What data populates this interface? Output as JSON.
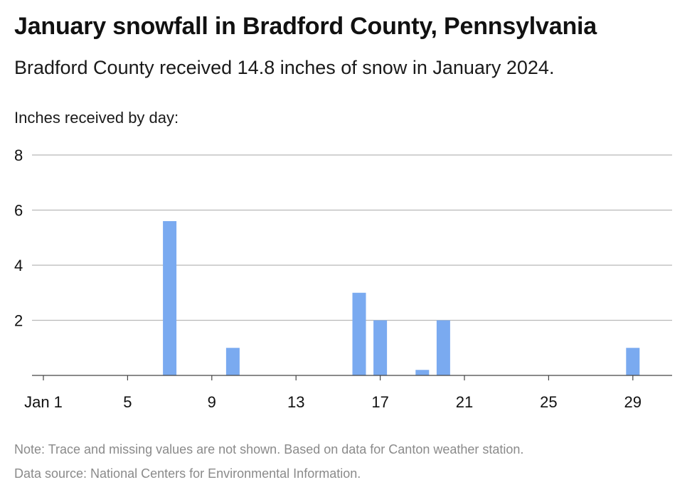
{
  "title": "January snowfall in Bradford County, Pennsylvania",
  "subtitle": "Bradford County received 14.8 inches of snow in January 2024.",
  "note": "Note: Trace and missing values are not shown. Based on data for Canton weather station.",
  "source": "Data source: National Centers for Environmental Information.",
  "colors": {
    "bar": "#7aaaf0",
    "grid": "#b8b8b8",
    "axis": "#444444",
    "text": "#111111"
  },
  "chart_data": {
    "type": "bar",
    "title": "January snowfall in Bradford County, Pennsylvania",
    "subtitle": "Bradford County received 14.8 inches of snow in January 2024.",
    "ylabel": "Inches received by day:",
    "xlabel": "",
    "ylim": [
      0,
      8
    ],
    "yticks": [
      2,
      4,
      6,
      8
    ],
    "x_ticks": [
      {
        "day": 1,
        "label": "Jan 1"
      },
      {
        "day": 5,
        "label": "5"
      },
      {
        "day": 9,
        "label": "9"
      },
      {
        "day": 13,
        "label": "13"
      },
      {
        "day": 17,
        "label": "17"
      },
      {
        "day": 21,
        "label": "21"
      },
      {
        "day": 25,
        "label": "25"
      },
      {
        "day": 29,
        "label": "29"
      }
    ],
    "grid": true,
    "days": [
      7,
      10,
      16,
      17,
      19,
      20,
      29
    ],
    "values": [
      5.6,
      1.0,
      3.0,
      2.0,
      0.2,
      2.0,
      1.0
    ]
  }
}
